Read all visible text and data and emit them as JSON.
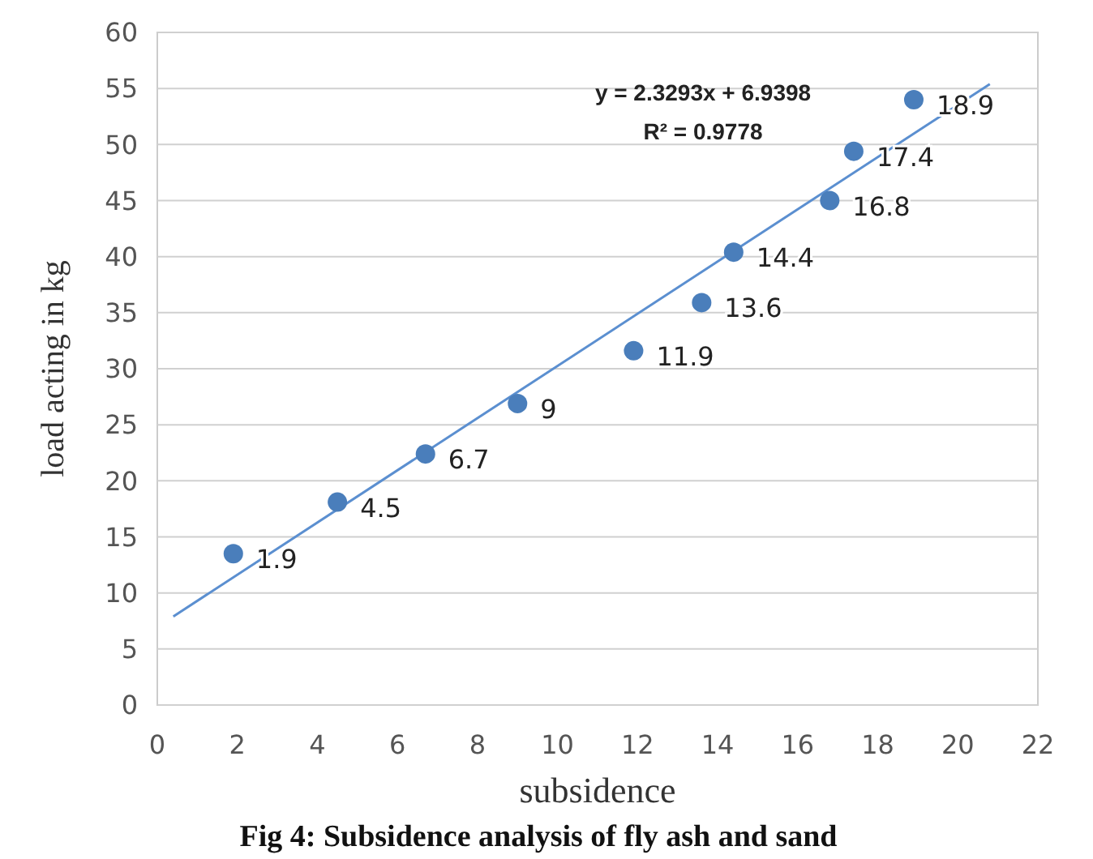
{
  "chart_data": {
    "type": "scatter",
    "title": "Fig 4: Subsidence analysis of fly ash and  sand",
    "xlabel": "subsidence",
    "ylabel": "load acting in kg",
    "annotations": [
      "y = 2.3293x + 6.9398",
      "R² = 0.9778",
      {
        "text": "1.9",
        "x": 1.9,
        "y": 13.5
      },
      {
        "text": "4.5",
        "x": 4.5,
        "y": 18.1
      },
      {
        "text": "6.7",
        "x": 6.7,
        "y": 22.4
      },
      {
        "text": "9",
        "x": 9,
        "y": 26.9
      },
      {
        "text": "11.9",
        "x": 11.9,
        "y": 31.6
      },
      {
        "text": "13.6",
        "x": 13.6,
        "y": 35.9
      },
      {
        "text": "14.4",
        "x": 14.4,
        "y": 40.4
      },
      {
        "text": "16.8",
        "x": 16.8,
        "y": 45.0
      },
      {
        "text": "17.4",
        "x": 17.4,
        "y": 49.4
      },
      {
        "text": "18.9",
        "x": 18.9,
        "y": 54.0
      }
    ],
    "series": [
      {
        "color": "#4a7ebb",
        "x": [
          1.9,
          4.5,
          6.7,
          9,
          11.9,
          13.6,
          14.4,
          16.8,
          17.4,
          18.9
        ],
        "values": [
          13.5,
          18.1,
          22.4,
          26.9,
          31.6,
          35.9,
          40.4,
          45.0,
          49.4,
          54.0
        ],
        "marker": "circle"
      },
      {
        "type": "line",
        "color": "#5b8fd0",
        "x": [
          0.4,
          20.8
        ],
        "values": [
          7.9,
          55.4
        ],
        "line_style": "solid"
      }
    ],
    "xlim": [
      0,
      22
    ],
    "xticks": [
      0,
      2,
      4,
      6,
      8,
      10,
      12,
      14,
      16,
      18,
      20,
      22
    ],
    "ylim": [
      0,
      60
    ],
    "yticks": [
      0,
      5,
      10,
      15,
      20,
      25,
      30,
      35,
      40,
      45,
      50,
      55,
      60
    ],
    "grid": "y"
  }
}
